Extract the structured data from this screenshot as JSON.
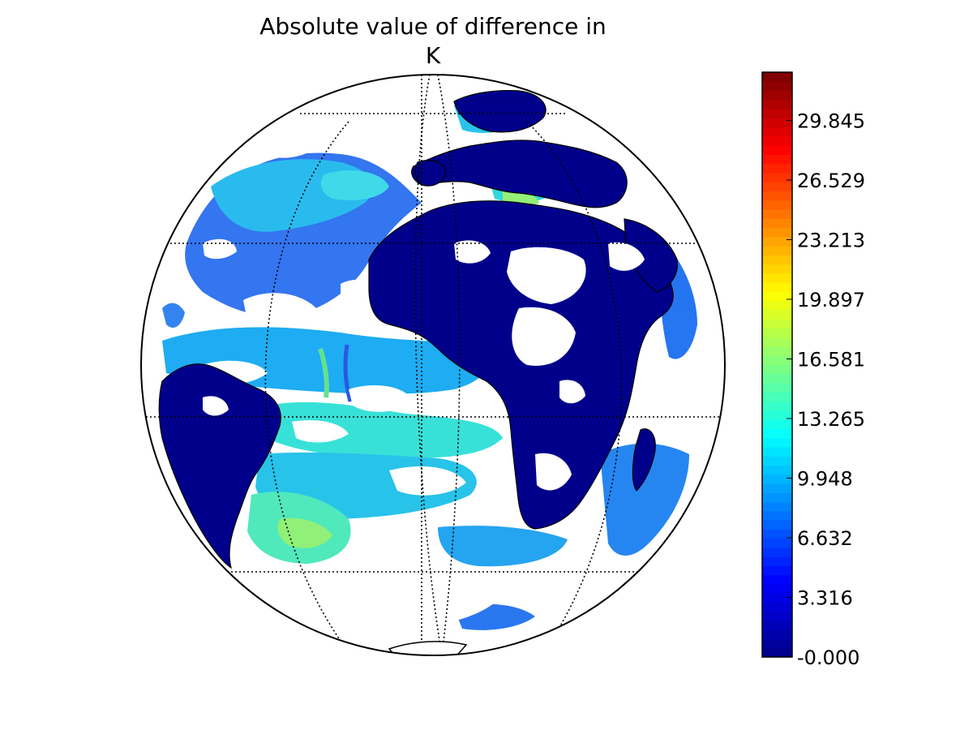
{
  "title_line1": "Absolute value of difference in",
  "title_line2": "K",
  "colorbar": {
    "ticks": [
      "-0.000",
      "3.316",
      "6.632",
      "9.948",
      "13.265",
      "16.581",
      "19.897",
      "23.213",
      "26.529",
      "29.845"
    ],
    "colormap": "jet",
    "colors": [
      "#00008f",
      "#0000ff",
      "#0080ff",
      "#00ffff",
      "#80ff80",
      "#ffff00",
      "#ff8000",
      "#ff0000",
      "#800000"
    ]
  },
  "map": {
    "projection": "orthographic",
    "ocean_color": "#ffffff",
    "land_color": "#00008b",
    "graticule_style": "dotted"
  }
}
